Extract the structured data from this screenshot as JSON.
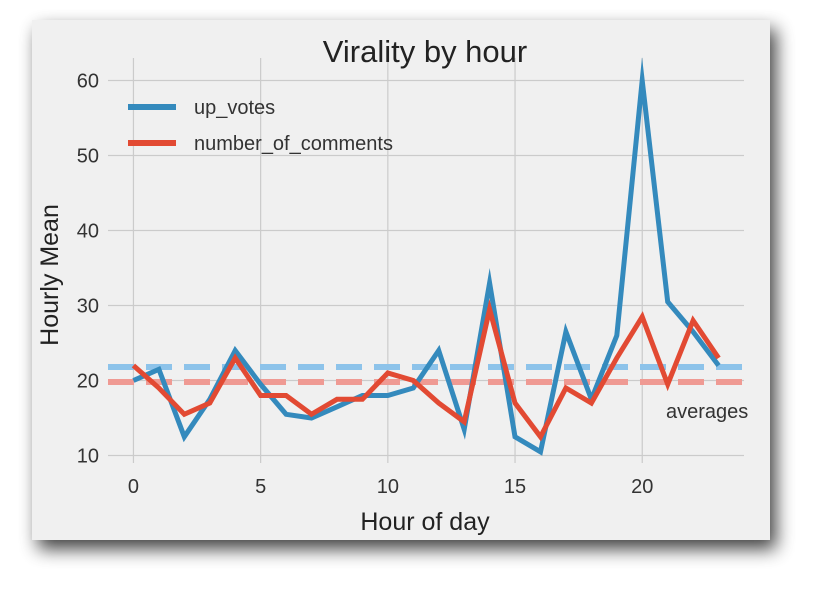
{
  "chart_data": {
    "type": "line",
    "title": "Virality by hour",
    "xlabel": "Hour of day",
    "ylabel": "Hourly Mean",
    "xlim": [
      -1,
      24
    ],
    "ylim": [
      9,
      63
    ],
    "xticks": [
      0,
      5,
      10,
      15,
      20
    ],
    "yticks": [
      10,
      20,
      30,
      40,
      50,
      60
    ],
    "grid": true,
    "legend_position": "top-left",
    "x": [
      0,
      1,
      2,
      3,
      4,
      5,
      6,
      7,
      8,
      9,
      10,
      11,
      12,
      13,
      14,
      15,
      16,
      17,
      18,
      19,
      20,
      21,
      22,
      23
    ],
    "series": [
      {
        "name": "up_votes",
        "color": "#348ABD",
        "values": [
          20.0,
          21.5,
          12.5,
          17.5,
          24.0,
          19.5,
          15.5,
          15.0,
          16.5,
          18.0,
          18.0,
          19.0,
          24.0,
          13.5,
          33.0,
          12.5,
          10.5,
          26.5,
          17.5,
          26.0,
          60.0,
          30.5,
          26.5,
          22.0
        ]
      },
      {
        "name": "number_of_comments",
        "color": "#E24A33",
        "values": [
          22.0,
          19.0,
          15.5,
          17.0,
          23.0,
          18.0,
          18.0,
          15.5,
          17.5,
          17.5,
          21.0,
          20.0,
          17.0,
          14.5,
          29.5,
          17.0,
          12.5,
          19.0,
          17.0,
          23.0,
          28.5,
          19.5,
          28.0,
          23.0
        ]
      }
    ],
    "reference_lines": [
      {
        "series": "up_votes",
        "value": 21.8,
        "color": "#8DC3EA",
        "style": "dashed"
      },
      {
        "series": "number_of_comments",
        "value": 19.8,
        "color": "#EF9A93",
        "style": "dashed"
      }
    ],
    "annotation": "averages"
  }
}
